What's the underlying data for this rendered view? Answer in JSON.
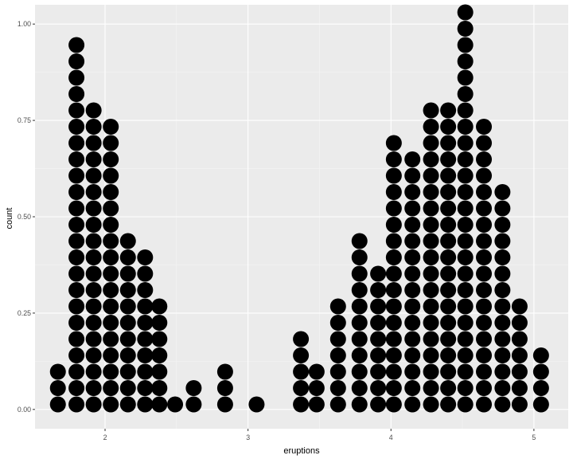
{
  "chart_data": {
    "type": "dotplot",
    "xlabel": "eruptions",
    "ylabel": "count",
    "x_ticks": [
      {
        "value": 2,
        "label": "2"
      },
      {
        "value": 3,
        "label": "3"
      },
      {
        "value": 4,
        "label": "4"
      },
      {
        "value": 5,
        "label": "5"
      }
    ],
    "y_ticks": [
      {
        "value": 0,
        "label": "0.00"
      },
      {
        "value": 0.25,
        "label": "0.25"
      },
      {
        "value": 0.5,
        "label": "0.50"
      },
      {
        "value": 0.75,
        "label": "0.75"
      },
      {
        "value": 1,
        "label": "1.00"
      }
    ],
    "xlim": [
      1.51,
      5.24
    ],
    "ylim": [
      -0.05,
      1.05
    ],
    "grid": true,
    "legend": "none",
    "colors": {
      "panel": "#ebebeb",
      "grid_major": "#ffffff",
      "grid_minor": "#f5f5f5",
      "dot": "#000000"
    },
    "stacks": [
      {
        "x": 1.67,
        "count": 3
      },
      {
        "x": 1.8,
        "count": 23
      },
      {
        "x": 1.92,
        "count": 19
      },
      {
        "x": 2.04,
        "count": 18
      },
      {
        "x": 2.16,
        "count": 11
      },
      {
        "x": 2.28,
        "count": 10
      },
      {
        "x": 2.38,
        "count": 7
      },
      {
        "x": 2.49,
        "count": 1
      },
      {
        "x": 2.62,
        "count": 2
      },
      {
        "x": 2.84,
        "count": 3
      },
      {
        "x": 3.06,
        "count": 1
      },
      {
        "x": 3.37,
        "count": 5
      },
      {
        "x": 3.48,
        "count": 3
      },
      {
        "x": 3.63,
        "count": 7
      },
      {
        "x": 3.78,
        "count": 11
      },
      {
        "x": 3.91,
        "count": 9
      },
      {
        "x": 4.02,
        "count": 17
      },
      {
        "x": 4.15,
        "count": 16
      },
      {
        "x": 4.28,
        "count": 19
      },
      {
        "x": 4.4,
        "count": 19
      },
      {
        "x": 4.52,
        "count": 25
      },
      {
        "x": 4.65,
        "count": 18
      },
      {
        "x": 4.78,
        "count": 14
      },
      {
        "x": 4.9,
        "count": 7
      },
      {
        "x": 5.05,
        "count": 4
      }
    ]
  }
}
